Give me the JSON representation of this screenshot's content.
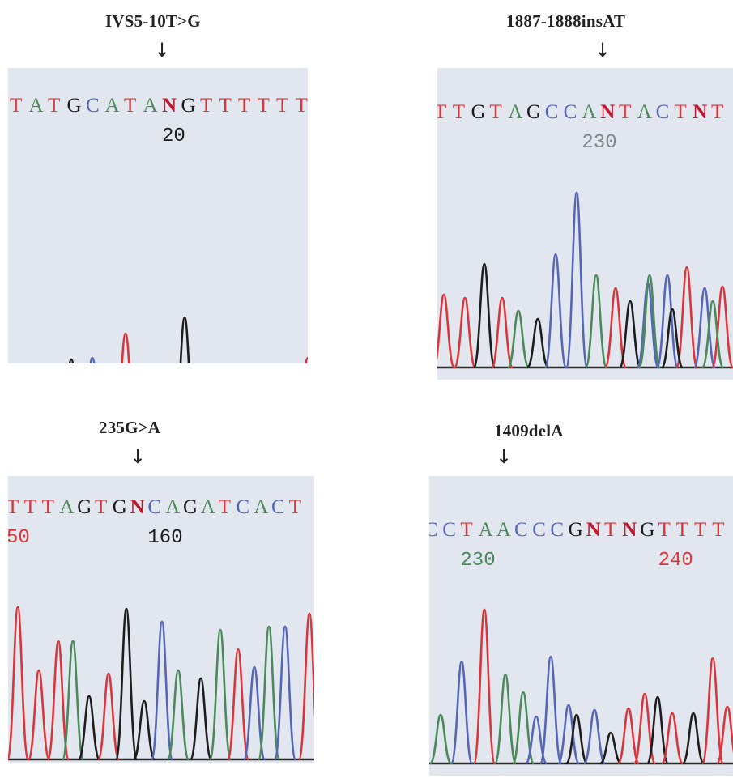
{
  "panels": [
    {
      "id": "p1",
      "mutation": "IVS5-10T>G",
      "arrow": "↓",
      "sequence": [
        {
          "b": "T",
          "c": "red"
        },
        {
          "b": "A",
          "c": "green"
        },
        {
          "b": "T",
          "c": "red"
        },
        {
          "b": "G",
          "c": "black"
        },
        {
          "b": "C",
          "c": "blue"
        },
        {
          "b": "A",
          "c": "green"
        },
        {
          "b": "T",
          "c": "red"
        },
        {
          "b": "A",
          "c": "green"
        },
        {
          "b": "N",
          "c": "crimson",
          "bold": true
        },
        {
          "b": "G",
          "c": "black"
        },
        {
          "b": "T",
          "c": "red"
        },
        {
          "b": "T",
          "c": "red"
        },
        {
          "b": "T",
          "c": "red"
        },
        {
          "b": "T",
          "c": "red"
        },
        {
          "b": "T",
          "c": "red"
        },
        {
          "b": "T",
          "c": "red"
        }
      ],
      "positions": [
        {
          "label": "20",
          "color": "black",
          "index": 8
        }
      ]
    },
    {
      "id": "p2",
      "mutation": "1887-1888insAT",
      "arrow": "↓",
      "sequence": [
        {
          "b": "T",
          "c": "red"
        },
        {
          "b": "T",
          "c": "red"
        },
        {
          "b": "G",
          "c": "black"
        },
        {
          "b": "T",
          "c": "red"
        },
        {
          "b": "A",
          "c": "green"
        },
        {
          "b": "G",
          "c": "black"
        },
        {
          "b": "C",
          "c": "blue"
        },
        {
          "b": "C",
          "c": "blue"
        },
        {
          "b": "A",
          "c": "green"
        },
        {
          "b": "N",
          "c": "crimson",
          "bold": true
        },
        {
          "b": "T",
          "c": "red"
        },
        {
          "b": "A",
          "c": "green"
        },
        {
          "b": "C",
          "c": "blue"
        },
        {
          "b": "T",
          "c": "red"
        },
        {
          "b": "N",
          "c": "crimson",
          "bold": true
        },
        {
          "b": "T",
          "c": "red"
        }
      ],
      "positions": [
        {
          "label": "230",
          "color": "gray",
          "index": 8
        }
      ]
    },
    {
      "id": "p3",
      "mutation": "235G>A",
      "arrow": "↓",
      "sequence": [
        {
          "b": "T",
          "c": "red"
        },
        {
          "b": "T",
          "c": "red"
        },
        {
          "b": "T",
          "c": "red"
        },
        {
          "b": "A",
          "c": "green"
        },
        {
          "b": "G",
          "c": "black"
        },
        {
          "b": "T",
          "c": "red"
        },
        {
          "b": "G",
          "c": "black"
        },
        {
          "b": "N",
          "c": "crimson",
          "bold": true
        },
        {
          "b": "C",
          "c": "blue"
        },
        {
          "b": "A",
          "c": "green"
        },
        {
          "b": "G",
          "c": "black"
        },
        {
          "b": "A",
          "c": "green"
        },
        {
          "b": "T",
          "c": "red"
        },
        {
          "b": "C",
          "c": "blue"
        },
        {
          "b": "A",
          "c": "green"
        },
        {
          "b": "C",
          "c": "blue"
        },
        {
          "b": "T",
          "c": "red"
        }
      ],
      "positions": [
        {
          "label": "50",
          "color": "red",
          "index": 0
        },
        {
          "label": "160",
          "color": "black",
          "index": 8
        }
      ]
    },
    {
      "id": "p4",
      "mutation": "1409delA",
      "arrow": "↓",
      "sequence": [
        {
          "b": "C",
          "c": "blue"
        },
        {
          "b": "C",
          "c": "blue"
        },
        {
          "b": "T",
          "c": "red"
        },
        {
          "b": "A",
          "c": "green"
        },
        {
          "b": "A",
          "c": "green"
        },
        {
          "b": "C",
          "c": "blue"
        },
        {
          "b": "C",
          "c": "blue"
        },
        {
          "b": "C",
          "c": "blue"
        },
        {
          "b": "G",
          "c": "black"
        },
        {
          "b": "N",
          "c": "crimson",
          "bold": true
        },
        {
          "b": "T",
          "c": "red"
        },
        {
          "b": "N",
          "c": "crimson",
          "bold": true
        },
        {
          "b": "G",
          "c": "black"
        },
        {
          "b": "T",
          "c": "red"
        },
        {
          "b": "T",
          "c": "red"
        },
        {
          "b": "T",
          "c": "red"
        },
        {
          "b": "T",
          "c": "red"
        }
      ],
      "positions": [
        {
          "label": "230",
          "color": "green",
          "index": 2
        },
        {
          "label": "240",
          "color": "red",
          "index": 13
        }
      ]
    }
  ],
  "colors": {
    "red": "#d8363a",
    "green": "#4a8a5a",
    "blue": "#5566b8",
    "black": "#1c1c1c",
    "crimson": "#c01830",
    "gray": "#7c8a8c"
  }
}
